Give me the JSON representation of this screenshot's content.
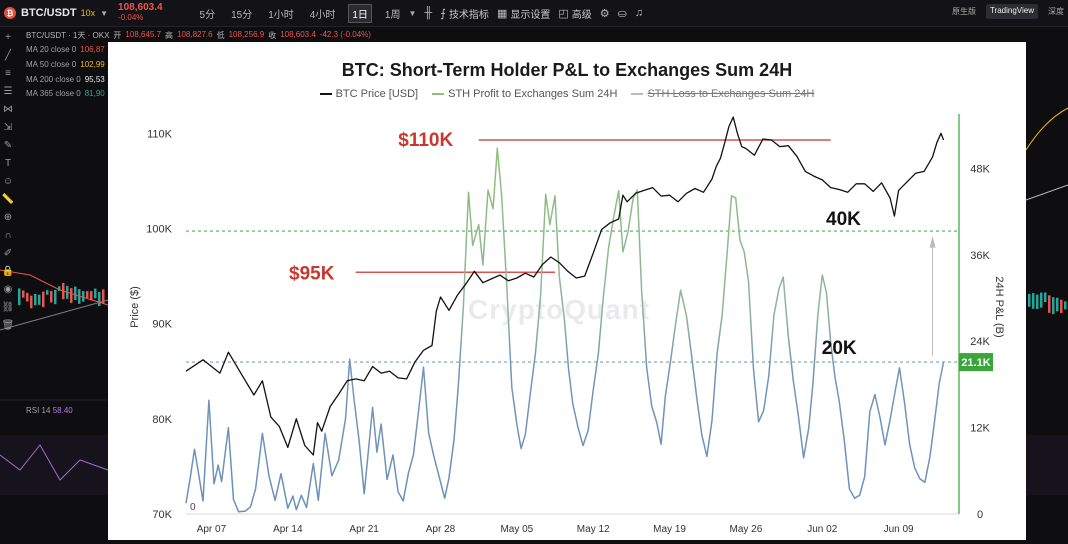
{
  "toolbar": {
    "logo_glyph": "₿",
    "symbol": "BTC/USDT",
    "leverage": "10x",
    "price": "108,603.4",
    "change": "-0.04%",
    "timeframes": [
      {
        "label": "5分",
        "active": false
      },
      {
        "label": "15分",
        "active": false
      },
      {
        "label": "1小时",
        "active": false
      },
      {
        "label": "4小时",
        "active": false
      },
      {
        "label": "1日",
        "active": true
      },
      {
        "label": "1周",
        "active": false
      }
    ],
    "indicators_label": "技术指标",
    "display_label": "显示设置",
    "advanced_label": "高级",
    "view_modes": [
      "原生版",
      "TradingView",
      "深度"
    ],
    "active_view": "TradingView"
  },
  "symbol_line": {
    "text": "BTC/USDT · 1天 · OKX",
    "open_label": "开",
    "open": "108,645.7",
    "high_label": "高",
    "high": "108,827.6",
    "low_label": "低",
    "low": "108,256.9",
    "close_label": "收",
    "close": "108,603.4",
    "change": "-42.3 (-0.04%)"
  },
  "ma_lines": [
    {
      "label": "MA 20 close 0",
      "value": "106,87",
      "color": "#ef5350"
    },
    {
      "label": "MA 50 close 0",
      "value": "102,99",
      "color": "#f0b90b"
    },
    {
      "label": "MA 200 close 0",
      "value": "95,53",
      "color": "#e8e8ea"
    },
    {
      "label": "MA 365 close 0",
      "value": "81,90",
      "color": "#26a69a"
    }
  ],
  "rsi": {
    "label": "RSI 14",
    "value": "58.40"
  },
  "chart_data": {
    "type": "line",
    "title": "BTC: Short-Term Holder P&L to Exchanges Sum 24H",
    "watermark": "CryptoQuant",
    "legend": [
      {
        "name": "BTC Price [USD]",
        "color": "#111111",
        "hidden": false
      },
      {
        "name": "STH Profit to Exchanges Sum 24H",
        "color": "#8fbf7a",
        "hidden": false
      },
      {
        "name": "STH Loss to Exchanges Sum 24H",
        "color": "#6f8fb5",
        "hidden": true
      }
    ],
    "x_ticks": [
      "Apr 07",
      "Apr 14",
      "Apr 21",
      "Apr 28",
      "May 05",
      "May 12",
      "May 19",
      "May 26",
      "Jun 02",
      "Jun 09"
    ],
    "left_axis": {
      "label": "Price ($)",
      "ticks": [
        "70K",
        "80K",
        "90K",
        "100K",
        "110K"
      ],
      "range": [
        70000,
        113500
      ]
    },
    "right_axis": {
      "label": "24H P&L (B)",
      "ticks": [
        "0",
        "12K",
        "24K",
        "36K",
        "48K"
      ],
      "range": [
        0,
        57500
      ]
    },
    "current_value_badge": "21.1K",
    "zero_label": "0",
    "annotations": {
      "price_high": "$110K",
      "price_mid": "$95K",
      "level_high": "40K",
      "level_low": "20K"
    },
    "price_series": [
      [
        0,
        85000
      ],
      [
        2,
        86200
      ],
      [
        4,
        84800
      ],
      [
        5,
        87000
      ],
      [
        7,
        84000
      ],
      [
        8,
        82500
      ],
      [
        9,
        84000
      ],
      [
        10,
        80200
      ],
      [
        11,
        79200
      ],
      [
        12,
        77000
      ],
      [
        13,
        80000
      ],
      [
        14,
        77200
      ],
      [
        15,
        76200
      ],
      [
        15.5,
        79600
      ],
      [
        16,
        78700
      ],
      [
        17,
        81300
      ],
      [
        18,
        82600
      ],
      [
        19,
        84000
      ],
      [
        20,
        84200
      ],
      [
        21,
        84000
      ],
      [
        22,
        85500
      ],
      [
        23,
        84800
      ],
      [
        24,
        85000
      ],
      [
        25,
        84300
      ],
      [
        26,
        84200
      ],
      [
        27,
        86000
      ],
      [
        28,
        87200
      ],
      [
        29,
        87700
      ],
      [
        29.5,
        91300
      ],
      [
        30,
        92800
      ],
      [
        31,
        91400
      ],
      [
        32,
        93000
      ],
      [
        33,
        94200
      ],
      [
        34,
        95500
      ],
      [
        35,
        94300
      ],
      [
        36,
        94700
      ],
      [
        37,
        95100
      ],
      [
        38,
        94500
      ],
      [
        39,
        94800
      ],
      [
        40,
        95300
      ],
      [
        41,
        94900
      ],
      [
        42,
        96200
      ],
      [
        43,
        97000
      ],
      [
        44,
        96400
      ],
      [
        45,
        95500
      ],
      [
        46,
        94800
      ],
      [
        47,
        95000
      ],
      [
        48,
        97400
      ],
      [
        49,
        99900
      ],
      [
        50,
        100600
      ],
      [
        51,
        101000
      ],
      [
        51.5,
        103500
      ],
      [
        52,
        102800
      ],
      [
        53,
        103700
      ],
      [
        54,
        104000
      ],
      [
        55,
        104300
      ],
      [
        56,
        103400
      ],
      [
        57,
        103500
      ],
      [
        58,
        102800
      ],
      [
        59,
        103700
      ],
      [
        60,
        104200
      ],
      [
        61,
        103800
      ],
      [
        62,
        105200
      ],
      [
        62.5,
        106500
      ],
      [
        63,
        107400
      ],
      [
        63.5,
        109000
      ],
      [
        64,
        110700
      ],
      [
        64.5,
        111700
      ],
      [
        65,
        110000
      ],
      [
        65.5,
        108600
      ],
      [
        66,
        108400
      ],
      [
        67,
        107700
      ],
      [
        68,
        109400
      ],
      [
        69,
        109300
      ],
      [
        70,
        108600
      ],
      [
        71,
        108700
      ],
      [
        72,
        107600
      ],
      [
        73,
        106000
      ],
      [
        74,
        105500
      ],
      [
        75,
        105100
      ],
      [
        76,
        104300
      ],
      [
        77,
        104100
      ],
      [
        78,
        103800
      ],
      [
        79,
        104700
      ],
      [
        80,
        104700
      ],
      [
        81,
        103900
      ],
      [
        82,
        104800
      ],
      [
        83,
        103200
      ],
      [
        83.5,
        101300
      ],
      [
        84,
        104000
      ],
      [
        85,
        104900
      ],
      [
        86,
        105800
      ],
      [
        87,
        106000
      ],
      [
        88,
        107500
      ],
      [
        88.5,
        109000
      ],
      [
        89,
        110000
      ],
      [
        89.3,
        109300
      ]
    ],
    "pl_series": [
      [
        0,
        1500
      ],
      [
        0.5,
        5000
      ],
      [
        1,
        9000
      ],
      [
        1.5,
        5500
      ],
      [
        2,
        1800
      ],
      [
        2.7,
        15800
      ],
      [
        3.3,
        4200
      ],
      [
        3.8,
        6800
      ],
      [
        4.2,
        4500
      ],
      [
        5,
        12000
      ],
      [
        5.6,
        2000
      ],
      [
        6.2,
        300
      ],
      [
        7,
        400
      ],
      [
        7.6,
        1000
      ],
      [
        8.2,
        3500
      ],
      [
        9,
        11200
      ],
      [
        9.8,
        5200
      ],
      [
        10.5,
        1900
      ],
      [
        11.2,
        5600
      ],
      [
        12,
        800
      ],
      [
        12.6,
        2500
      ],
      [
        13,
        600
      ],
      [
        13.6,
        2600
      ],
      [
        14.2,
        900
      ],
      [
        15,
        7000
      ],
      [
        15.6,
        1900
      ],
      [
        16.4,
        11200
      ],
      [
        17.2,
        5300
      ],
      [
        18,
        7500
      ],
      [
        18.8,
        13200
      ],
      [
        19.3,
        21500
      ],
      [
        19.8,
        16000
      ],
      [
        20.4,
        10200
      ],
      [
        21,
        2800
      ],
      [
        22,
        14800
      ],
      [
        22.5,
        8600
      ],
      [
        23,
        12500
      ],
      [
        23.7,
        4800
      ],
      [
        24.4,
        8200
      ],
      [
        25,
        3100
      ],
      [
        25.6,
        1800
      ],
      [
        26.2,
        5600
      ],
      [
        26.8,
        8200
      ],
      [
        27.4,
        14100
      ],
      [
        28,
        20400
      ],
      [
        28.6,
        11300
      ],
      [
        29.2,
        8100
      ],
      [
        29.7,
        5800
      ],
      [
        30.5,
        2200
      ],
      [
        31,
        5000
      ],
      [
        31.6,
        10400
      ],
      [
        32.1,
        17800
      ],
      [
        32.7,
        28900
      ],
      [
        33.3,
        44700
      ],
      [
        33.8,
        37300
      ],
      [
        34.5,
        40200
      ],
      [
        35,
        34600
      ],
      [
        35.6,
        45000
      ],
      [
        36.2,
        42400
      ],
      [
        36.7,
        50800
      ],
      [
        37.2,
        44300
      ],
      [
        37.8,
        31800
      ],
      [
        38.4,
        17600
      ],
      [
        39,
        12400
      ],
      [
        39.5,
        9100
      ],
      [
        40,
        11000
      ],
      [
        40.6,
        16800
      ],
      [
        41.2,
        22400
      ],
      [
        41.8,
        30300
      ],
      [
        42.4,
        44400
      ],
      [
        42.9,
        40200
      ],
      [
        43.5,
        44200
      ],
      [
        44,
        33000
      ],
      [
        44.6,
        27000
      ],
      [
        45.1,
        20100
      ],
      [
        45.6,
        15300
      ],
      [
        46.2,
        12100
      ],
      [
        46.8,
        9500
      ],
      [
        47.4,
        11600
      ],
      [
        48,
        17200
      ],
      [
        48.6,
        22200
      ],
      [
        49.2,
        30200
      ],
      [
        49.8,
        36900
      ],
      [
        50.4,
        41200
      ],
      [
        51,
        44900
      ],
      [
        51.5,
        36400
      ],
      [
        52.1,
        39200
      ],
      [
        52.7,
        43800
      ],
      [
        53.2,
        45000
      ],
      [
        53.7,
        31100
      ],
      [
        54.3,
        20300
      ],
      [
        54.9,
        15000
      ],
      [
        55.5,
        12700
      ],
      [
        56,
        9700
      ],
      [
        56.5,
        16300
      ],
      [
        57.1,
        21100
      ],
      [
        57.7,
        26300
      ],
      [
        58.3,
        31100
      ],
      [
        59,
        27500
      ],
      [
        59.6,
        22000
      ],
      [
        60.2,
        16200
      ],
      [
        60.8,
        11000
      ],
      [
        61.4,
        8000
      ],
      [
        62,
        13000
      ],
      [
        62.6,
        22300
      ],
      [
        63.2,
        27700
      ],
      [
        63.8,
        36400
      ],
      [
        64.3,
        44200
      ],
      [
        64.8,
        43900
      ],
      [
        65.3,
        38000
      ],
      [
        65.8,
        36400
      ],
      [
        66.3,
        32300
      ],
      [
        66.9,
        20100
      ],
      [
        67.5,
        12800
      ],
      [
        68.1,
        14400
      ],
      [
        68.7,
        19200
      ],
      [
        69.3,
        27600
      ],
      [
        69.9,
        31300
      ],
      [
        70.4,
        32900
      ],
      [
        71,
        24700
      ],
      [
        71.6,
        18400
      ],
      [
        72.2,
        13500
      ],
      [
        72.8,
        7800
      ],
      [
        73.4,
        11900
      ],
      [
        73.9,
        18100
      ],
      [
        74.5,
        27900
      ],
      [
        75,
        33200
      ],
      [
        75.5,
        30700
      ],
      [
        76,
        23800
      ],
      [
        76.5,
        19000
      ],
      [
        77,
        15700
      ],
      [
        77.6,
        10200
      ],
      [
        78.2,
        3500
      ],
      [
        78.8,
        2200
      ],
      [
        79.4,
        2600
      ],
      [
        80,
        5200
      ],
      [
        80.6,
        14200
      ],
      [
        81.2,
        16600
      ],
      [
        81.8,
        13400
      ],
      [
        82.4,
        9600
      ],
      [
        83,
        13100
      ],
      [
        83.6,
        17100
      ],
      [
        84.1,
        20300
      ],
      [
        84.7,
        15400
      ],
      [
        85.3,
        9700
      ],
      [
        85.9,
        6400
      ],
      [
        86.5,
        4900
      ],
      [
        87.1,
        4400
      ],
      [
        87.7,
        8000
      ],
      [
        88.2,
        12500
      ],
      [
        88.8,
        18200
      ],
      [
        89.3,
        21100
      ]
    ]
  }
}
